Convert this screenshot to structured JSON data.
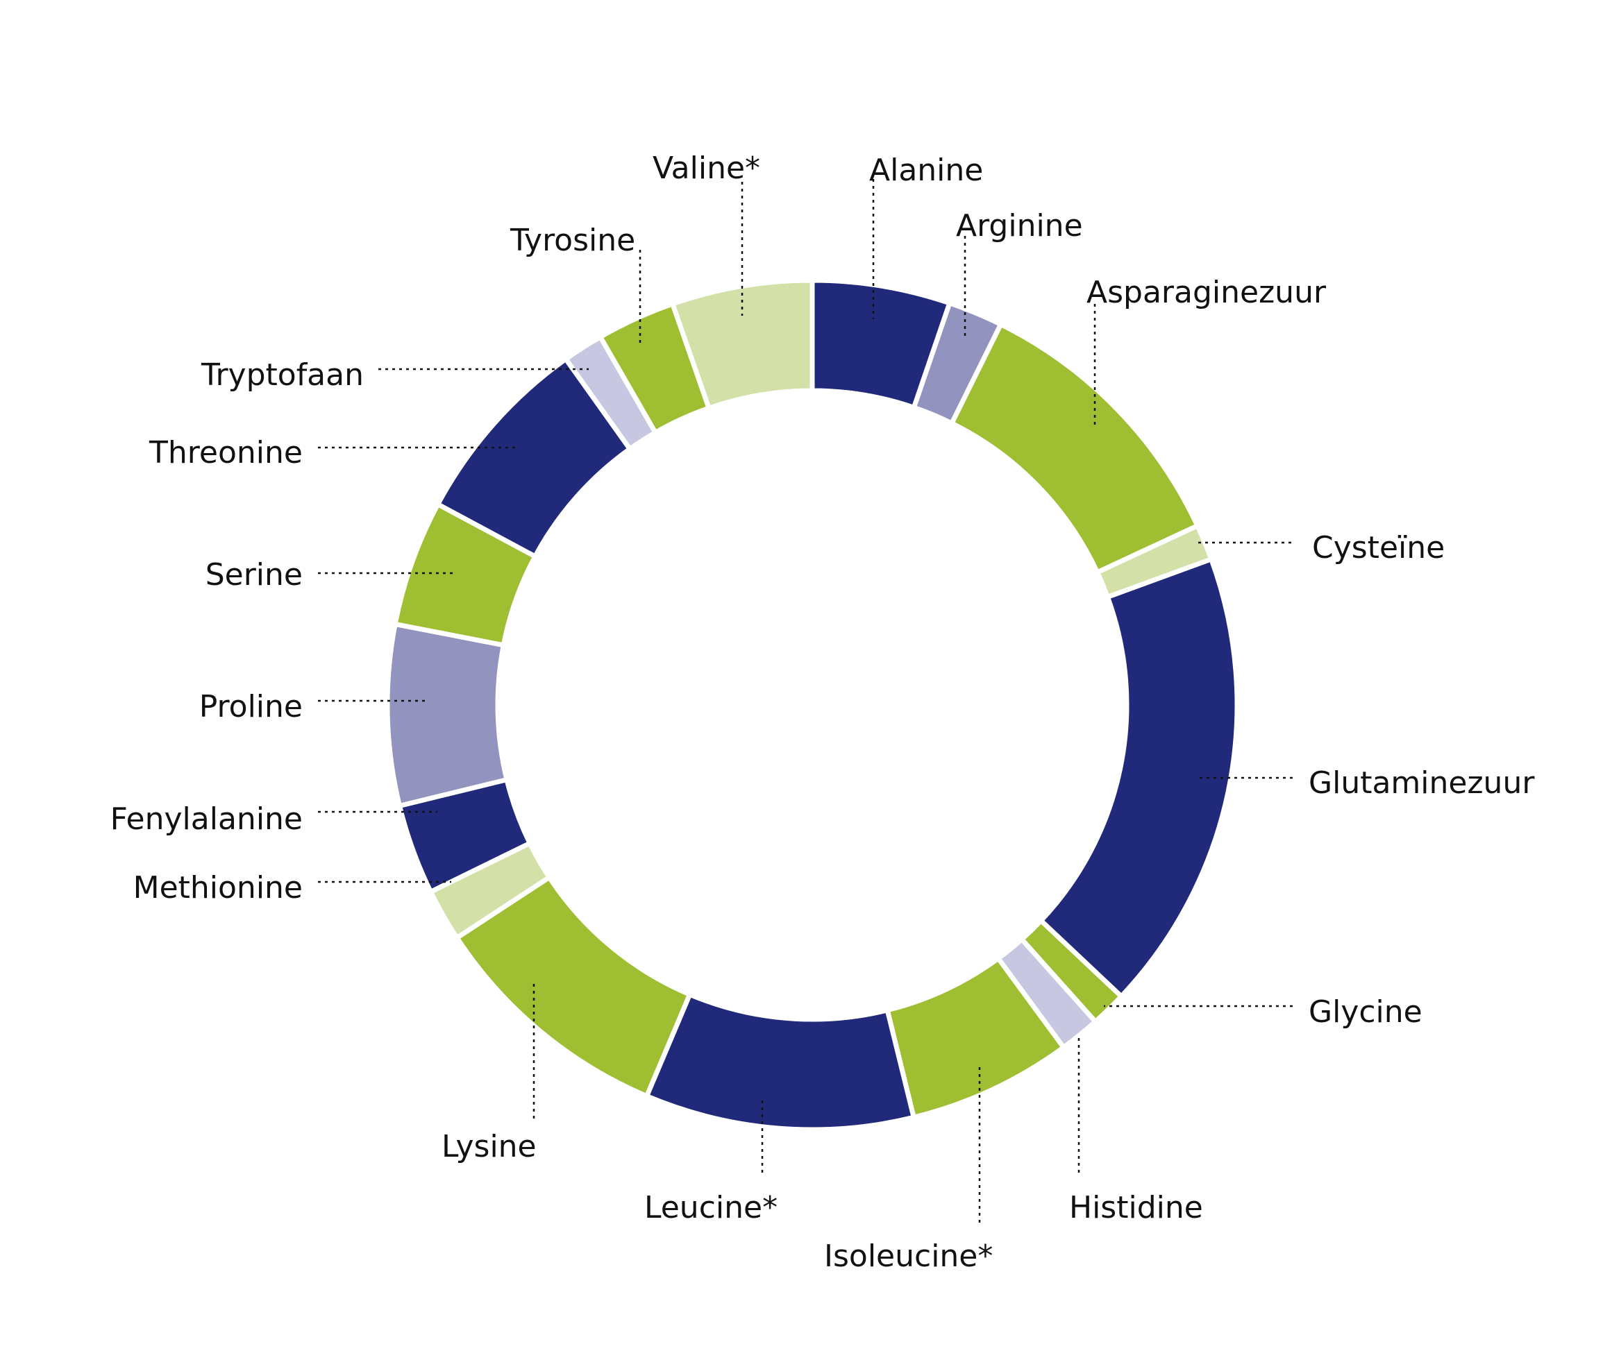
{
  "chart_data": {
    "type": "pie",
    "donut": true,
    "legend": "none",
    "grid": false,
    "colors": {
      "navy": "#212a7a",
      "lime": "#9fbe32",
      "pale_green": "#d3e0a8",
      "lavender": "#9393c0",
      "pale_lavender": "#c8c7e2",
      "separator": "#ffffff",
      "leader": "#111111"
    },
    "slices": [
      {
        "label": "Alanine",
        "value": 5.8,
        "color": "navy"
      },
      {
        "label": "Arginine",
        "value": 2.3,
        "color": "lavender"
      },
      {
        "label": "Asparaginezuur",
        "value": 11.9,
        "color": "lime"
      },
      {
        "label": "Cysteïne",
        "value": 1.5,
        "color": "pale_green"
      },
      {
        "label": "Glutaminezuur",
        "value": 19.5,
        "color": "navy"
      },
      {
        "label": "Glycine",
        "value": 1.5,
        "color": "lime"
      },
      {
        "label": "Histidine",
        "value": 1.7,
        "color": "pale_lavender"
      },
      {
        "label": "Isoleucine*",
        "value": 6.9,
        "color": "lime"
      },
      {
        "label": "Leucine*",
        "value": 11.3,
        "color": "navy"
      },
      {
        "label": "Lysine",
        "value": 10.4,
        "color": "lime"
      },
      {
        "label": "Methionine",
        "value": 2.2,
        "color": "pale_green"
      },
      {
        "label": "Fenylalanine",
        "value": 3.8,
        "color": "navy"
      },
      {
        "label": "Proline",
        "value": 7.6,
        "color": "lavender"
      },
      {
        "label": "Serine",
        "value": 5.3,
        "color": "lime"
      },
      {
        "label": "Threonine",
        "value": 8.1,
        "color": "navy"
      },
      {
        "label": "Tryptofaan",
        "value": 1.7,
        "color": "pale_lavender"
      },
      {
        "label": "Tyrosine",
        "value": 3.3,
        "color": "lime"
      },
      {
        "label": "Valine*",
        "value": 5.9,
        "color": "pale_green"
      }
    ]
  }
}
